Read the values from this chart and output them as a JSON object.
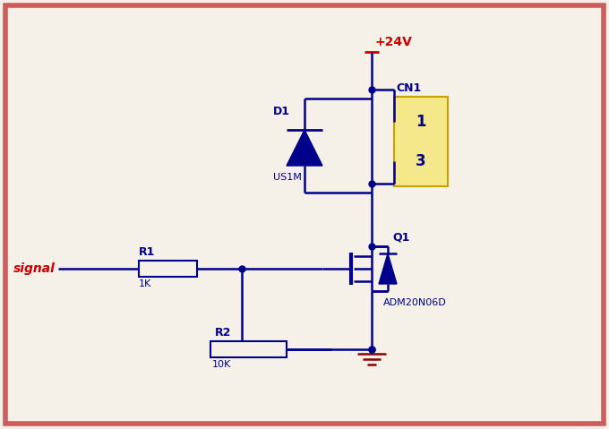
{
  "bg_color": "#f5f0e8",
  "border_color": "#cd5c5c",
  "wire_color": "#00008b",
  "red_color": "#cc0000",
  "gnd_color": "#8b0000",
  "cn1_fill": "#f5e88a",
  "cn1_edge": "#c8a000",
  "components": {
    "vcc_label": "+24V",
    "signal_label": "signal",
    "r1_label": "R1",
    "r1_val": "1K",
    "r2_label": "R2",
    "r2_val": "10K",
    "d1_label": "D1",
    "d1_val": "US1M",
    "q1_label": "Q1",
    "q1_val": "ADM20N06D",
    "cn1_label": "CN1",
    "cn1_pin1": "1",
    "cn1_pin3": "3"
  }
}
